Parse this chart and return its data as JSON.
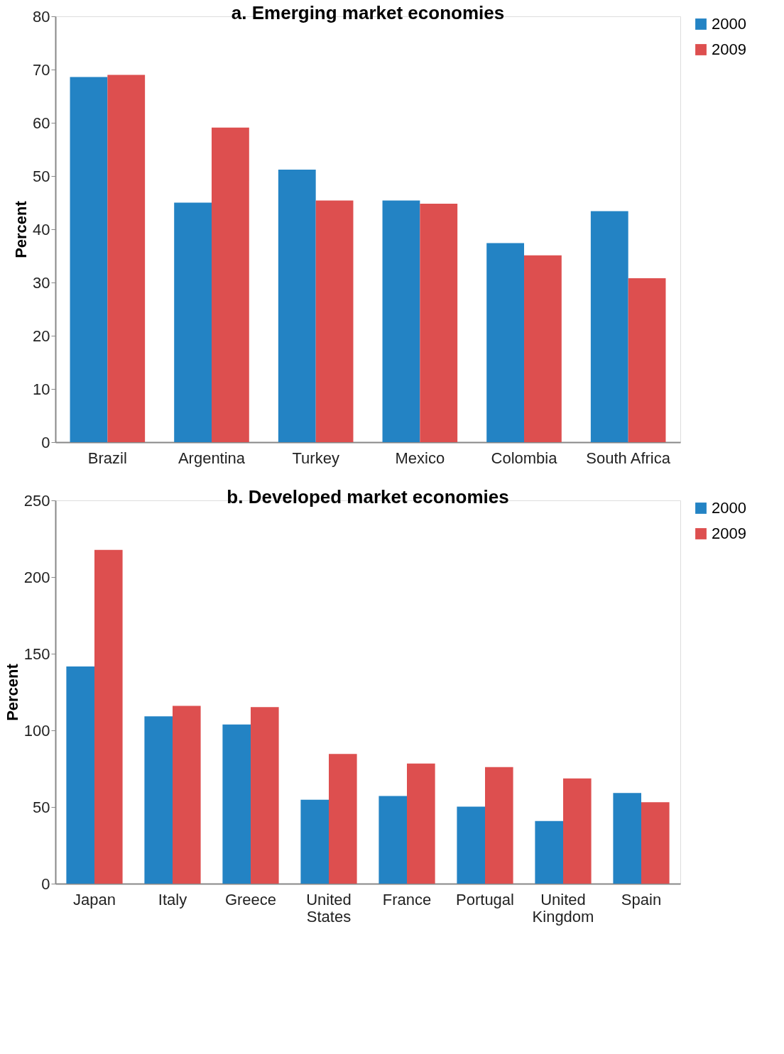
{
  "chart_data": [
    {
      "type": "bar",
      "title": "a. Emerging market economies",
      "ylabel": "Percent",
      "categories": [
        "Brazil",
        "Argentina",
        "Turkey",
        "Mexico",
        "Colombia",
        "South Africa"
      ],
      "series": [
        {
          "name": "2000",
          "color": "#2383c4",
          "values": [
            68.6,
            45.0,
            51.2,
            45.4,
            37.4,
            43.4
          ]
        },
        {
          "name": "2009",
          "color": "#dd4f4f",
          "values": [
            69.0,
            59.1,
            45.4,
            44.8,
            35.1,
            30.8
          ]
        }
      ],
      "ylim": [
        0,
        80
      ],
      "yticks": [
        0,
        10,
        20,
        30,
        40,
        50,
        60,
        70,
        80
      ],
      "grid": false,
      "legend": "right"
    },
    {
      "type": "bar",
      "title": "b. Developed market economies",
      "ylabel": "Percent",
      "categories": [
        "Japan",
        "Italy",
        "Greece",
        "United States",
        "France",
        "Portugal",
        "United Kingdom",
        "Spain"
      ],
      "series": [
        {
          "name": "2000",
          "color": "#2383c4",
          "values": [
            141.7,
            109.1,
            103.8,
            54.7,
            57.2,
            50.2,
            40.8,
            59.2
          ]
        },
        {
          "name": "2009",
          "color": "#dd4f4f",
          "values": [
            217.7,
            116.0,
            115.2,
            84.6,
            78.4,
            76.0,
            68.6,
            53.1
          ]
        }
      ],
      "ylim": [
        0,
        250
      ],
      "yticks": [
        0,
        50,
        100,
        150,
        200,
        250
      ],
      "grid": false,
      "legend": "right"
    }
  ]
}
